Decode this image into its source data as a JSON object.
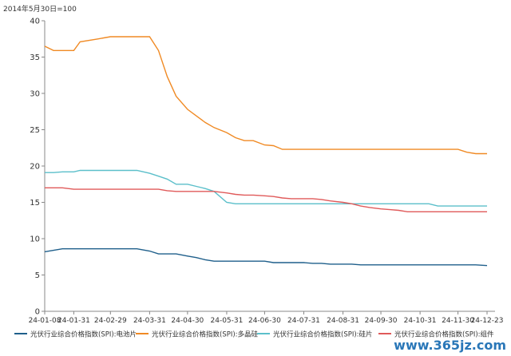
{
  "chart_data": {
    "type": "line",
    "unit_label": "2014年5月30日=100",
    "ylim": [
      0,
      40
    ],
    "yticks": [
      0,
      5,
      10,
      15,
      20,
      25,
      30,
      35,
      40
    ],
    "x_tick_labels": [
      "24-01-08",
      "24-01-31",
      "24-02-29",
      "24-03-31",
      "24-04-30",
      "24-05-31",
      "24-06-30",
      "24-07-31",
      "24-08-31",
      "24-09-30",
      "24-10-31",
      "24-11-30",
      "24-12-23"
    ],
    "dates": [
      "24-01-08",
      "24-01-15",
      "24-01-22",
      "24-01-31",
      "24-02-05",
      "24-02-19",
      "24-02-29",
      "24-03-07",
      "24-03-14",
      "24-03-21",
      "24-03-31",
      "24-04-07",
      "24-04-14",
      "24-04-21",
      "24-04-30",
      "24-05-07",
      "24-05-14",
      "24-05-21",
      "24-05-31",
      "24-06-07",
      "24-06-14",
      "24-06-21",
      "24-06-30",
      "24-07-07",
      "24-07-14",
      "24-07-21",
      "24-07-31",
      "24-08-07",
      "24-08-14",
      "24-08-21",
      "24-08-31",
      "24-09-07",
      "24-09-14",
      "24-09-21",
      "24-09-30",
      "24-10-07",
      "24-10-14",
      "24-10-21",
      "24-10-31",
      "24-11-07",
      "24-11-14",
      "24-11-21",
      "24-11-30",
      "24-12-07",
      "24-12-14",
      "24-12-23"
    ],
    "series": [
      {
        "name": "光伏行业综合价格指数(SPI):电池片",
        "color": "#1f5f8b",
        "values": [
          8.2,
          8.4,
          8.6,
          8.6,
          8.6,
          8.6,
          8.6,
          8.6,
          8.6,
          8.6,
          8.3,
          7.9,
          7.9,
          7.9,
          7.6,
          7.4,
          7.1,
          6.9,
          6.9,
          6.9,
          6.9,
          6.9,
          6.9,
          6.7,
          6.7,
          6.7,
          6.7,
          6.6,
          6.6,
          6.5,
          6.5,
          6.5,
          6.4,
          6.4,
          6.4,
          6.4,
          6.4,
          6.4,
          6.4,
          6.4,
          6.4,
          6.4,
          6.4,
          6.4,
          6.4,
          6.3
        ]
      },
      {
        "name": "光伏行业综合价格指数(SPI):多晶硅",
        "color": "#f08a24",
        "values": [
          36.5,
          35.9,
          35.9,
          35.9,
          37.1,
          37.5,
          37.8,
          37.8,
          37.8,
          37.8,
          37.8,
          35.9,
          32.3,
          29.6,
          27.8,
          26.9,
          26.0,
          25.3,
          24.6,
          23.9,
          23.5,
          23.5,
          22.9,
          22.8,
          22.3,
          22.3,
          22.3,
          22.3,
          22.3,
          22.3,
          22.3,
          22.3,
          22.3,
          22.3,
          22.3,
          22.3,
          22.3,
          22.3,
          22.3,
          22.3,
          22.3,
          22.3,
          22.3,
          21.9,
          21.7,
          21.7
        ]
      },
      {
        "name": "光伏行业综合价格指数(SPI):硅片",
        "color": "#5bbfca",
        "values": [
          19.1,
          19.1,
          19.2,
          19.2,
          19.4,
          19.4,
          19.4,
          19.4,
          19.4,
          19.4,
          19.0,
          18.6,
          18.2,
          17.5,
          17.5,
          17.2,
          16.9,
          16.5,
          15.0,
          14.8,
          14.8,
          14.8,
          14.8,
          14.8,
          14.8,
          14.8,
          14.8,
          14.8,
          14.8,
          14.8,
          14.8,
          14.8,
          14.8,
          14.8,
          14.8,
          14.8,
          14.8,
          14.8,
          14.8,
          14.8,
          14.5,
          14.5,
          14.5,
          14.5,
          14.5,
          14.5
        ]
      },
      {
        "name": "光伏行业综合价格指数(SPI):组件",
        "color": "#e05a5a",
        "values": [
          17.0,
          17.0,
          17.0,
          16.8,
          16.8,
          16.8,
          16.8,
          16.8,
          16.8,
          16.8,
          16.8,
          16.8,
          16.6,
          16.5,
          16.5,
          16.5,
          16.5,
          16.5,
          16.3,
          16.1,
          16.0,
          16.0,
          15.9,
          15.8,
          15.6,
          15.5,
          15.5,
          15.5,
          15.4,
          15.2,
          15.0,
          14.8,
          14.5,
          14.3,
          14.1,
          14.0,
          13.9,
          13.7,
          13.7,
          13.7,
          13.7,
          13.7,
          13.7,
          13.7,
          13.7,
          13.7
        ]
      }
    ]
  },
  "watermark": "www.365jz.com"
}
